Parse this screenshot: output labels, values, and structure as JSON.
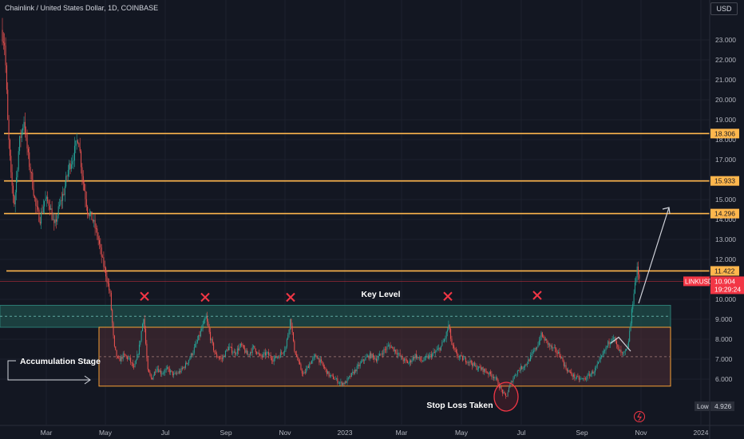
{
  "header": {
    "title": "Chainlink / United States Dollar, 1D, COINBASE"
  },
  "currency_button": "USD",
  "colors": {
    "background": "#131722",
    "grid": "#1e222d",
    "resistance": "#ffb74d",
    "up": "#26a69a",
    "down": "#ef5350",
    "key_zone": "#1f4d4a",
    "range_zone": "#4a2c33",
    "range_border": "#f7a035",
    "last_price": "#f23645",
    "arrow": "#d1d4dc",
    "mark": "#f23645"
  },
  "chart_data": {
    "type": "candlestick",
    "symbol": "LINKUSD",
    "timeframe": "1D",
    "exchange": "COINBASE",
    "ylim": [
      4.2,
      24.2
    ],
    "y_ticks": [
      6,
      7,
      8,
      9,
      10,
      11,
      12,
      13,
      14,
      15,
      16,
      17,
      18,
      19,
      20,
      21,
      22,
      23
    ],
    "y_tick_labels": [
      "6.000",
      "7.000",
      "8.000",
      "9.000",
      "10.000",
      "11.000",
      "12.000",
      "13.000",
      "14.000",
      "15.000",
      "16.000",
      "17.000",
      "18.000",
      "19.000",
      "20.000",
      "21.000",
      "22.000",
      "23.000"
    ],
    "x_ticks": [
      {
        "label": "Mar",
        "x": 58
      },
      {
        "label": "May",
        "x": 132
      },
      {
        "label": "Jul",
        "x": 207
      },
      {
        "label": "Sep",
        "x": 283
      },
      {
        "label": "Nov",
        "x": 357
      },
      {
        "label": "2023",
        "x": 432
      },
      {
        "label": "Mar",
        "x": 503
      },
      {
        "label": "May",
        "x": 578
      },
      {
        "label": "Jul",
        "x": 653
      },
      {
        "label": "Sep",
        "x": 729
      },
      {
        "label": "Nov",
        "x": 803
      },
      {
        "label": "2024",
        "x": 878
      }
    ],
    "resistance_levels": [
      {
        "value": 18.306,
        "label": "18.306"
      },
      {
        "value": 15.933,
        "label": "15.933"
      },
      {
        "value": 14.296,
        "label": "14.296"
      },
      {
        "value": 11.422,
        "label": "11.422"
      }
    ],
    "last_price": {
      "value": 10.904,
      "label": "10.904",
      "symbol_label": "LINKUSD",
      "countdown": "19:29:24"
    },
    "low": {
      "label": "Low",
      "value": "4.926"
    },
    "price_path": [
      [
        2,
        23.5
      ],
      [
        6,
        22.8
      ],
      [
        10,
        18.6
      ],
      [
        14,
        16.0
      ],
      [
        18,
        14.8
      ],
      [
        24,
        17.8
      ],
      [
        30,
        19.0
      ],
      [
        35,
        17.2
      ],
      [
        40,
        16.0
      ],
      [
        45,
        14.6
      ],
      [
        50,
        14.0
      ],
      [
        56,
        15.0
      ],
      [
        62,
        14.8
      ],
      [
        68,
        13.6
      ],
      [
        74,
        14.6
      ],
      [
        80,
        15.4
      ],
      [
        86,
        16.6
      ],
      [
        92,
        17.2
      ],
      [
        98,
        18.2
      ],
      [
        104,
        15.9
      ],
      [
        110,
        14.4
      ],
      [
        116,
        14.0
      ],
      [
        122,
        13.2
      ],
      [
        128,
        12.0
      ],
      [
        133,
        11.2
      ],
      [
        138,
        10.2
      ],
      [
        143,
        7.6
      ],
      [
        148,
        6.9
      ],
      [
        155,
        7.2
      ],
      [
        162,
        7.0
      ],
      [
        168,
        6.5
      ],
      [
        174,
        7.5
      ],
      [
        180,
        9.2
      ],
      [
        185,
        6.4
      ],
      [
        190,
        6.0
      ],
      [
        196,
        6.6
      ],
      [
        202,
        6.3
      ],
      [
        210,
        6.5
      ],
      [
        218,
        6.2
      ],
      [
        226,
        6.4
      ],
      [
        234,
        6.8
      ],
      [
        242,
        7.4
      ],
      [
        250,
        8.2
      ],
      [
        258,
        9.1
      ],
      [
        264,
        8.0
      ],
      [
        270,
        7.2
      ],
      [
        278,
        7.0
      ],
      [
        286,
        7.6
      ],
      [
        294,
        7.3
      ],
      [
        302,
        7.7
      ],
      [
        310,
        7.2
      ],
      [
        318,
        7.6
      ],
      [
        326,
        7.1
      ],
      [
        334,
        7.3
      ],
      [
        342,
        7.0
      ],
      [
        350,
        7.2
      ],
      [
        358,
        7.6
      ],
      [
        364,
        9.1
      ],
      [
        368,
        7.6
      ],
      [
        374,
        6.8
      ],
      [
        380,
        6.2
      ],
      [
        388,
        6.8
      ],
      [
        396,
        7.2
      ],
      [
        404,
        6.7
      ],
      [
        412,
        6.2
      ],
      [
        420,
        6.0
      ],
      [
        426,
        5.8
      ],
      [
        432,
        5.8
      ],
      [
        440,
        6.2
      ],
      [
        448,
        6.6
      ],
      [
        456,
        7.0
      ],
      [
        464,
        7.2
      ],
      [
        472,
        7.0
      ],
      [
        480,
        7.4
      ],
      [
        488,
        7.7
      ],
      [
        496,
        7.4
      ],
      [
        504,
        7.0
      ],
      [
        512,
        6.8
      ],
      [
        520,
        7.2
      ],
      [
        528,
        6.9
      ],
      [
        536,
        7.1
      ],
      [
        544,
        7.3
      ],
      [
        552,
        7.6
      ],
      [
        558,
        8.1
      ],
      [
        562,
        8.7
      ],
      [
        566,
        7.7
      ],
      [
        572,
        7.2
      ],
      [
        580,
        7.0
      ],
      [
        588,
        6.9
      ],
      [
        596,
        6.6
      ],
      [
        604,
        6.5
      ],
      [
        612,
        6.3
      ],
      [
        620,
        6.1
      ],
      [
        626,
        5.6
      ],
      [
        630,
        5.3
      ],
      [
        634,
        5.1
      ],
      [
        638,
        5.6
      ],
      [
        642,
        6.0
      ],
      [
        648,
        6.4
      ],
      [
        654,
        6.6
      ],
      [
        660,
        6.8
      ],
      [
        666,
        7.2
      ],
      [
        672,
        7.6
      ],
      [
        678,
        8.2
      ],
      [
        684,
        7.9
      ],
      [
        690,
        7.6
      ],
      [
        696,
        7.4
      ],
      [
        702,
        7.2
      ],
      [
        708,
        6.6
      ],
      [
        714,
        6.3
      ],
      [
        720,
        6.1
      ],
      [
        726,
        6.0
      ],
      [
        732,
        6.0
      ],
      [
        738,
        6.2
      ],
      [
        744,
        6.4
      ],
      [
        750,
        6.8
      ],
      [
        756,
        7.3
      ],
      [
        762,
        7.8
      ],
      [
        768,
        8.2
      ],
      [
        774,
        7.5
      ],
      [
        780,
        7.2
      ],
      [
        786,
        7.5
      ],
      [
        790,
        8.8
      ],
      [
        794,
        10.4
      ],
      [
        798,
        11.5
      ],
      [
        802,
        10.9
      ]
    ],
    "annotations": {
      "x_marks": [
        {
          "x": 181,
          "value": 10.15
        },
        {
          "x": 257,
          "value": 10.1
        },
        {
          "x": 364,
          "value": 10.1
        },
        {
          "x": 561,
          "value": 10.15
        },
        {
          "x": 673,
          "value": 10.2
        }
      ],
      "key_level_label": "Key Level",
      "accumulation_label": "Accumulation Stage",
      "stop_loss_label": "Stop Loss Taken",
      "key_zone": {
        "top": 9.7,
        "bottom": 8.6
      },
      "range_zone": {
        "top": 8.6,
        "bottom": 5.65
      },
      "projection": {
        "from": [
          765,
          7.8
        ],
        "peak_a": [
          775,
          8.5
        ],
        "via": [
          790,
          8.6
        ],
        "to": [
          838,
          14.6
        ]
      }
    }
  }
}
